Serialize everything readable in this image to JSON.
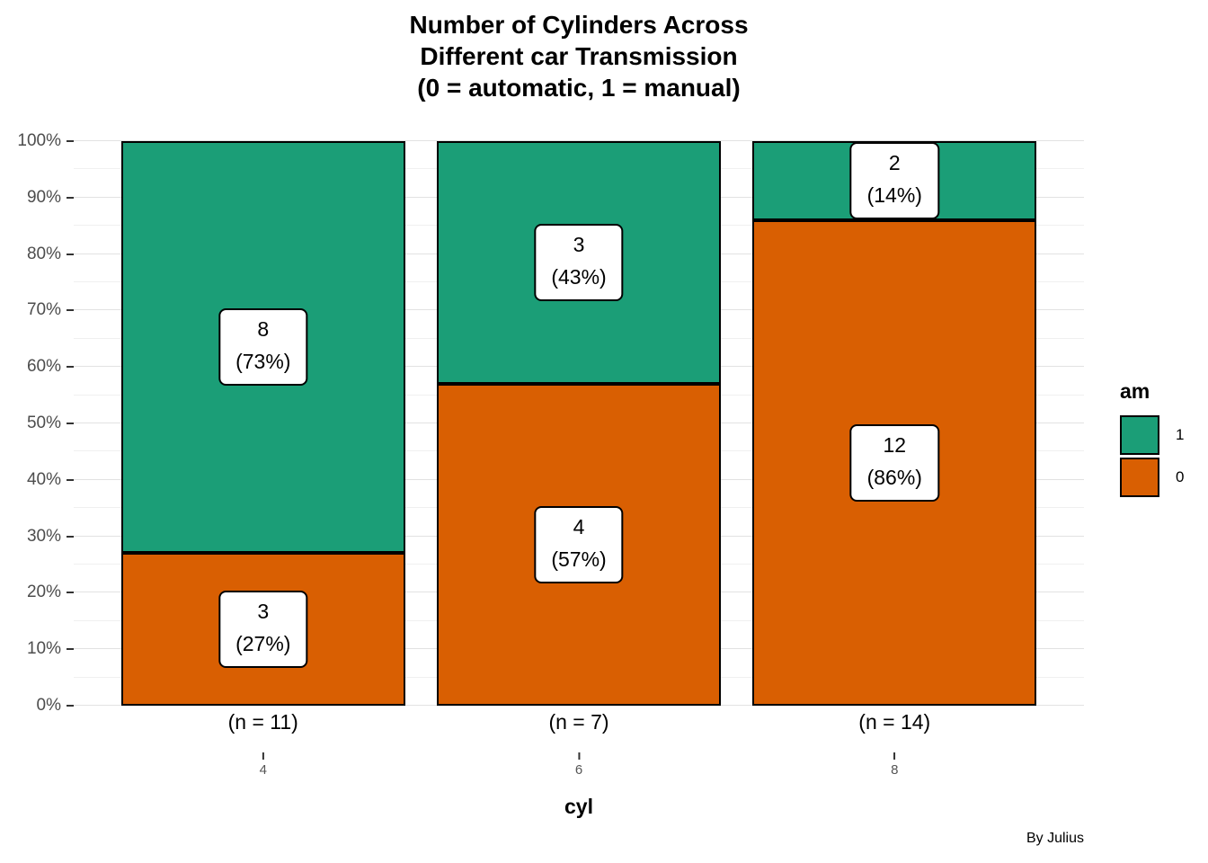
{
  "title": {
    "line1": "Number of Cylinders Across",
    "line2": "Different car Transmission",
    "line3": "(0 = automatic, 1 = manual)"
  },
  "caption": "By Julius",
  "chart_data": {
    "type": "bar",
    "subtype": "stacked-percent",
    "title": "Number of Cylinders Across Different car Transmission (0 = automatic, 1 = manual)",
    "xlabel": "cyl",
    "ylabel": "",
    "ylim": [
      0,
      100
    ],
    "grid": true,
    "y_ticks": [
      {
        "value": 0,
        "label": "0%"
      },
      {
        "value": 10,
        "label": "10%"
      },
      {
        "value": 20,
        "label": "20%"
      },
      {
        "value": 30,
        "label": "30%"
      },
      {
        "value": 40,
        "label": "40%"
      },
      {
        "value": 50,
        "label": "50%"
      },
      {
        "value": 60,
        "label": "60%"
      },
      {
        "value": 70,
        "label": "70%"
      },
      {
        "value": 80,
        "label": "80%"
      },
      {
        "value": 90,
        "label": "90%"
      },
      {
        "value": 100,
        "label": "100%"
      }
    ],
    "y_minor_step": 5,
    "categories": [
      {
        "value": "4",
        "n_label": "(n = 11)"
      },
      {
        "value": "6",
        "n_label": "(n = 7)"
      },
      {
        "value": "8",
        "n_label": "(n = 14)"
      }
    ],
    "series": [
      {
        "name": "1",
        "color": "#1B9E77",
        "counts": [
          8,
          3,
          2
        ],
        "percents": [
          73,
          43,
          14
        ],
        "percent_labels": [
          "(73%)",
          "(43%)",
          "(14%)"
        ]
      },
      {
        "name": "0",
        "color": "#D95F02",
        "counts": [
          3,
          4,
          12
        ],
        "percents": [
          27,
          57,
          86
        ],
        "percent_labels": [
          "(27%)",
          "(57%)",
          "(86%)"
        ]
      }
    ],
    "legend": {
      "title": "am",
      "position": "right",
      "entries": [
        {
          "label": "1",
          "color": "#1B9E77"
        },
        {
          "label": "0",
          "color": "#D95F02"
        }
      ]
    }
  }
}
